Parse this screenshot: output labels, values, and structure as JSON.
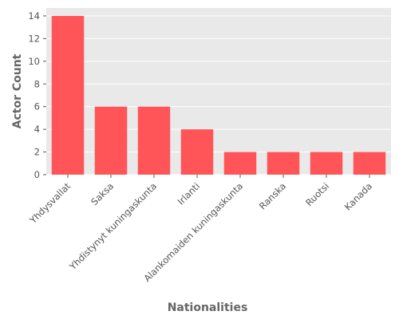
{
  "chart_data": {
    "type": "bar",
    "title": "",
    "xlabel": "Nationalities",
    "ylabel": "Actor Count",
    "categories": [
      "Yhdysvallat",
      "Saksa",
      "Yhdistynyt kuningaskunta",
      "Irlanti",
      "Alankomaiden kuningaskunta",
      "Ranska",
      "Ruotsi",
      "Kanada"
    ],
    "values": [
      14,
      6,
      6,
      4,
      2,
      2,
      2,
      2
    ],
    "ylim": [
      0,
      14.7
    ],
    "yticks": [
      0,
      2,
      4,
      6,
      8,
      10,
      12,
      14
    ],
    "grid": true,
    "bar_color": "#ff5558",
    "background_color": "#e9e9e9",
    "grid_color": "#ffffff"
  }
}
